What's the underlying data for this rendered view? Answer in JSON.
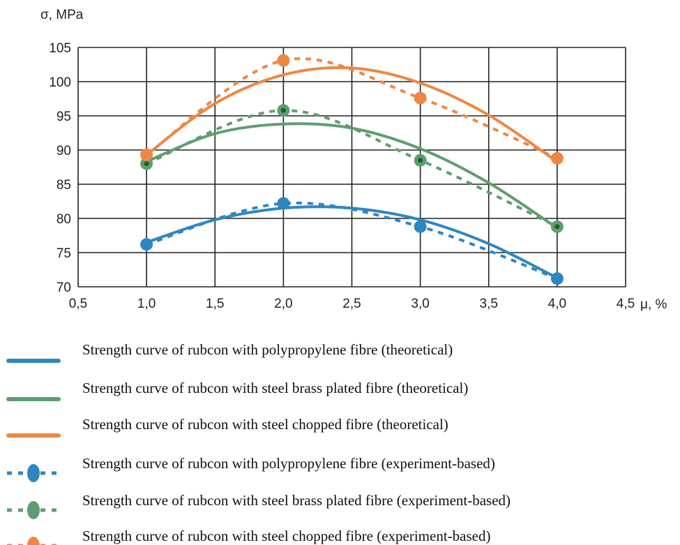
{
  "chart_data": {
    "type": "line",
    "ylabel": "σ, MPa",
    "xlabel": "μ, %",
    "xlim": [
      0.5,
      4.5
    ],
    "ylim": [
      70,
      105
    ],
    "xticks": [
      "0,5",
      "1,0",
      "1,5",
      "2,0",
      "2,5",
      "3,0",
      "3,5",
      "4,0",
      "4,5"
    ],
    "yticks": [
      "70",
      "75",
      "80",
      "85",
      "90",
      "95",
      "100",
      "105"
    ],
    "grid": true,
    "legend_position": "bottom",
    "series": [
      {
        "name": "Strength curve of rubcon with polypropylene fibre (theoretical)",
        "color": "#2e86c1",
        "style": "solid",
        "x": [
          1.0,
          1.5,
          2.0,
          2.5,
          3.0,
          3.5,
          4.0
        ],
        "y": [
          76.5,
          79.8,
          81.5,
          81.5,
          79.8,
          76.3,
          71.3
        ]
      },
      {
        "name": "Strength curve of rubcon with steel brass plated fibre (theoretical)",
        "color": "#5e9e6e",
        "style": "solid",
        "x": [
          1.0,
          1.5,
          2.0,
          2.5,
          3.0,
          3.5,
          4.0
        ],
        "y": [
          88.3,
          92.4,
          93.8,
          93.2,
          90.2,
          85.2,
          78.6
        ]
      },
      {
        "name": "Strength curve of rubcon with steel chopped fibre (theoretical)",
        "color": "#ee8744",
        "style": "solid",
        "x": [
          1.0,
          1.5,
          2.0,
          2.5,
          3.0,
          3.5,
          4.0
        ],
        "y": [
          89.3,
          96.8,
          101.0,
          102.0,
          99.8,
          95.1,
          88.3
        ]
      },
      {
        "name": "Strength curve of rubcon with polypropylene fibre (experiment-based)",
        "color": "#2e86c1",
        "style": "dashed",
        "x": [
          1.0,
          2.0,
          3.0,
          4.0
        ],
        "y": [
          76.2,
          82.2,
          78.8,
          71.2
        ]
      },
      {
        "name": "Strength curve of rubcon with steel brass plated fibre (experiment-based)",
        "color": "#5e9e6e",
        "style": "dashed",
        "x": [
          1.0,
          2.0,
          3.0,
          4.0
        ],
        "y": [
          88.0,
          95.8,
          88.5,
          78.8
        ]
      },
      {
        "name": "Strength curve of rubcon with steel chopped fibre (experiment-based)",
        "color": "#ee8744",
        "style": "dashed",
        "x": [
          1.0,
          2.0,
          3.0,
          4.0
        ],
        "y": [
          89.3,
          103.1,
          97.6,
          88.8
        ]
      }
    ]
  }
}
